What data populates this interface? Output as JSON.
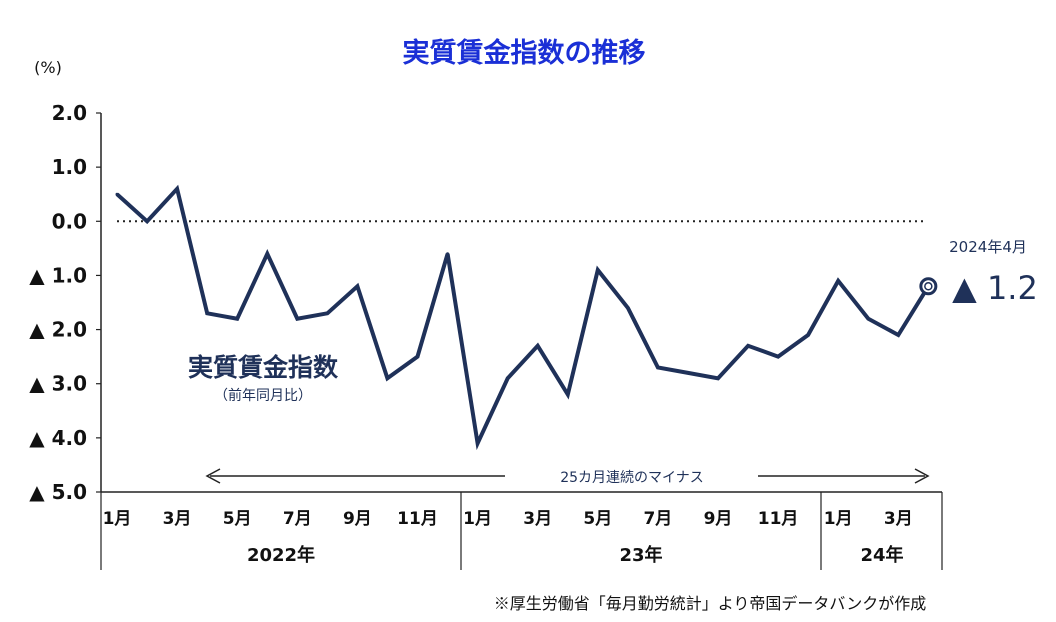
{
  "chart_data": {
    "type": "line",
    "title": "実質賃金指数の推移",
    "unit_label": "(%)",
    "ylim": [
      -5.0,
      2.0
    ],
    "y_ticks": [
      2.0,
      1.0,
      0.0,
      -1.0,
      -2.0,
      -3.0,
      -4.0,
      -5.0
    ],
    "y_tick_labels": [
      "2.0",
      "1.0",
      "0.0",
      "▲ 1.0",
      "▲ 2.0",
      "▲ 3.0",
      "▲ 4.0",
      "▲ 5.0"
    ],
    "zero_line": "dotted",
    "x_tick_labels": [
      "1月",
      "3月",
      "5月",
      "7月",
      "9月",
      "11月",
      "1月",
      "3月",
      "5月",
      "7月",
      "9月",
      "11月",
      "1月",
      "3月"
    ],
    "years": [
      "2022年",
      "23年",
      "24年"
    ],
    "series": [
      {
        "name": "実質賃金指数",
        "subtitle": "（前年同月比）",
        "color": "#1f3159",
        "x": [
          "2022-01",
          "2022-02",
          "2022-03",
          "2022-04",
          "2022-05",
          "2022-06",
          "2022-07",
          "2022-08",
          "2022-09",
          "2022-10",
          "2022-11",
          "2022-12",
          "2023-01",
          "2023-02",
          "2023-03",
          "2023-04",
          "2023-05",
          "2023-06",
          "2023-07",
          "2023-08",
          "2023-09",
          "2023-10",
          "2023-11",
          "2023-12",
          "2024-01",
          "2024-02",
          "2024-03",
          "2024-04"
        ],
        "values": [
          0.5,
          0.0,
          0.6,
          -1.7,
          -1.8,
          -0.6,
          -1.8,
          -1.7,
          -1.2,
          -2.9,
          -2.5,
          -0.6,
          -4.1,
          -2.9,
          -2.3,
          -3.2,
          -0.9,
          -1.6,
          -2.7,
          -2.8,
          -2.9,
          -2.3,
          -2.5,
          -2.1,
          -1.1,
          -1.8,
          -2.1,
          -1.2
        ]
      }
    ],
    "annotations": {
      "latest_date": "2024年4月",
      "latest_value": "▲ 1.2",
      "streak": "25カ月連続のマイナス"
    }
  },
  "source_note": "※厚生労働省「毎月勤労統計」より帝国データバンクが作成"
}
